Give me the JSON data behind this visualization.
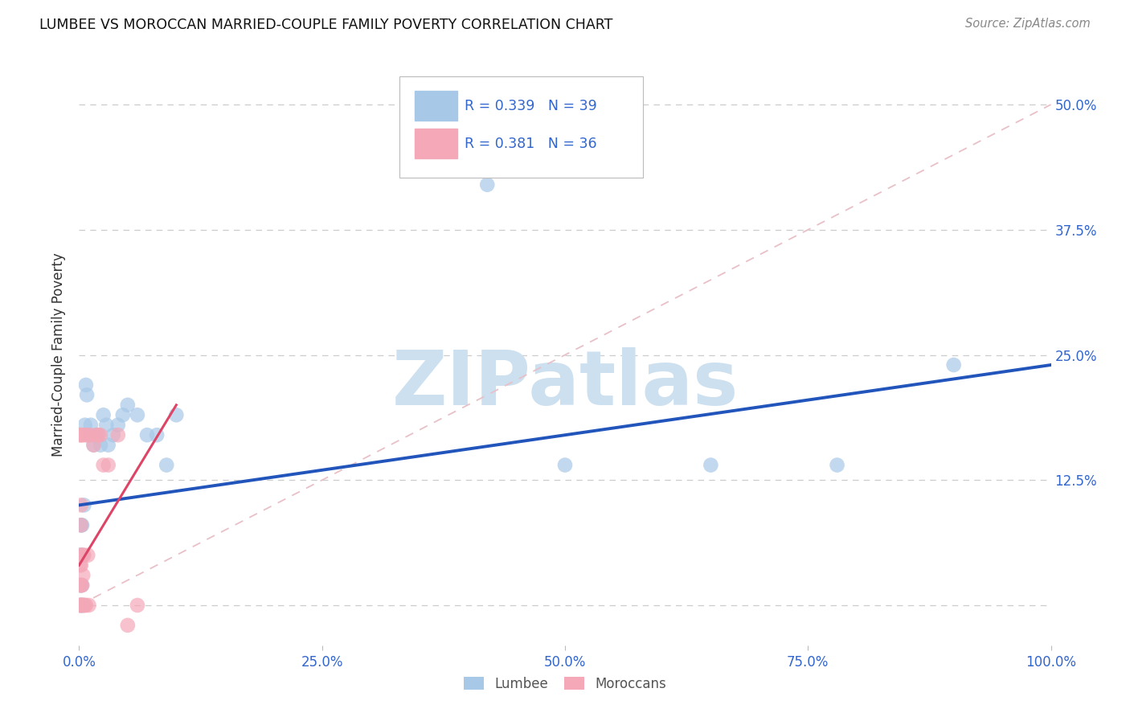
{
  "title": "LUMBEE VS MOROCCAN MARRIED-COUPLE FAMILY POVERTY CORRELATION CHART",
  "source": "Source: ZipAtlas.com",
  "ylabel": "Married-Couple Family Poverty",
  "xlim": [
    0,
    1.0
  ],
  "ylim": [
    -0.04,
    0.54
  ],
  "yticks": [
    0.0,
    0.125,
    0.25,
    0.375,
    0.5
  ],
  "ytick_labels": [
    "",
    "12.5%",
    "25.0%",
    "37.5%",
    "50.0%"
  ],
  "xticks": [
    0.0,
    0.25,
    0.5,
    0.75,
    1.0
  ],
  "xtick_labels": [
    "0.0%",
    "25.0%",
    "50.0%",
    "75.0%",
    "100.0%"
  ],
  "lumbee_R": "0.339",
  "lumbee_N": "39",
  "moroccan_R": "0.381",
  "moroccan_N": "36",
  "lumbee_color": "#a8c8e8",
  "moroccan_color": "#f4a8b8",
  "lumbee_line_color": "#2255bb",
  "moroccan_line_color": "#dd4466",
  "ref_line_color": "#e8c0c8",
  "watermark_color": "#cce0f0",
  "lumbee_x": [
    0.001,
    0.001,
    0.001,
    0.002,
    0.002,
    0.002,
    0.002,
    0.003,
    0.003,
    0.003,
    0.004,
    0.004,
    0.005,
    0.006,
    0.007,
    0.008,
    0.01,
    0.012,
    0.015,
    0.018,
    0.02,
    0.022,
    0.025,
    0.028,
    0.03,
    0.035,
    0.04,
    0.045,
    0.05,
    0.06,
    0.07,
    0.08,
    0.09,
    0.1,
    0.42,
    0.5,
    0.65,
    0.78,
    0.9
  ],
  "lumbee_y": [
    0.0,
    0.02,
    0.05,
    0.0,
    0.02,
    0.05,
    0.08,
    0.0,
    0.02,
    0.08,
    0.0,
    0.05,
    0.1,
    0.18,
    0.22,
    0.21,
    0.17,
    0.18,
    0.16,
    0.17,
    0.17,
    0.16,
    0.19,
    0.18,
    0.16,
    0.17,
    0.18,
    0.19,
    0.2,
    0.19,
    0.17,
    0.17,
    0.14,
    0.19,
    0.42,
    0.14,
    0.14,
    0.14,
    0.24
  ],
  "moroccan_x": [
    0.001,
    0.001,
    0.001,
    0.001,
    0.001,
    0.002,
    0.002,
    0.002,
    0.002,
    0.002,
    0.002,
    0.002,
    0.003,
    0.003,
    0.003,
    0.003,
    0.004,
    0.004,
    0.005,
    0.005,
    0.006,
    0.006,
    0.007,
    0.008,
    0.009,
    0.01,
    0.012,
    0.015,
    0.018,
    0.02,
    0.022,
    0.025,
    0.03,
    0.04,
    0.05,
    0.06
  ],
  "moroccan_y": [
    0.0,
    0.0,
    0.02,
    0.04,
    0.17,
    0.0,
    0.02,
    0.04,
    0.05,
    0.08,
    0.1,
    0.17,
    0.0,
    0.02,
    0.05,
    0.17,
    0.0,
    0.03,
    0.0,
    0.05,
    0.0,
    0.17,
    0.0,
    0.17,
    0.05,
    0.0,
    0.17,
    0.16,
    0.17,
    0.17,
    0.17,
    0.14,
    0.14,
    0.17,
    -0.02,
    0.0
  ],
  "lumbee_trend_x0": 0.0,
  "lumbee_trend_y0": 0.1,
  "lumbee_trend_x1": 1.0,
  "lumbee_trend_y1": 0.24,
  "moroccan_trend_x0": 0.0,
  "moroccan_trend_y0": 0.04,
  "moroccan_trend_x1": 0.1,
  "moroccan_trend_y1": 0.2
}
